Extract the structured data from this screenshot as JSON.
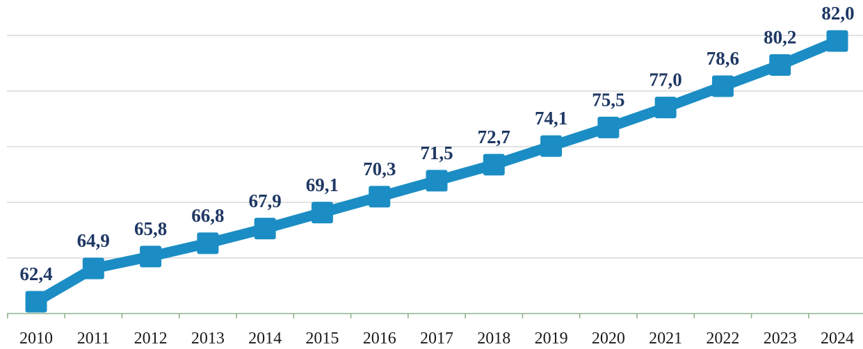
{
  "colors": {
    "series": "#1b8dc4",
    "data_label": "#1f3864",
    "tick_label": "#1a1a1a",
    "grid": "#d9d9d9",
    "axis": "#8fb48f"
  },
  "chart_data": {
    "type": "line",
    "title": "",
    "xlabel": "",
    "ylabel": "",
    "categories": [
      "2010",
      "2011",
      "2012",
      "2013",
      "2014",
      "2015",
      "2016",
      "2017",
      "2018",
      "2019",
      "2020",
      "2021",
      "2022",
      "2023",
      "2024"
    ],
    "series": [
      {
        "values": [
          62.4,
          64.9,
          65.8,
          66.8,
          67.9,
          69.1,
          70.3,
          71.5,
          72.7,
          74.1,
          75.5,
          77.0,
          78.6,
          80.2,
          82.0
        ],
        "labels": [
          "62,4",
          "64,9",
          "65,8",
          "66,8",
          "67,9",
          "69,1",
          "70,3",
          "71,5",
          "72,7",
          "74,1",
          "75,5",
          "77,0",
          "78,6",
          "80,2",
          "82,0"
        ],
        "marker": "square"
      }
    ],
    "ylim": [
      60,
      85
    ],
    "grid": true,
    "y_axis_visible": false,
    "legend": "none"
  }
}
